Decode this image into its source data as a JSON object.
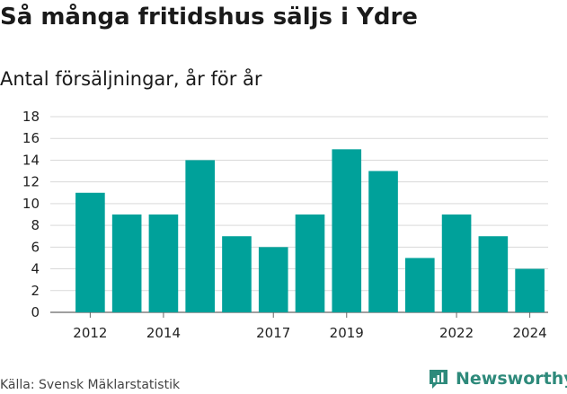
{
  "header": {
    "title": "Så många fritidshus säljs i Ydre",
    "subtitle": "Antal försäljningar, år för år"
  },
  "footer": {
    "source": "Källa: Svensk Mäklarstatistik",
    "logo_text": "Newsworthy",
    "logo_icon": "newsworthy-logo-icon"
  },
  "colors": {
    "bar": "#00a19a",
    "grid": "#d9d9d9",
    "logo": "#2e8a7b"
  },
  "chart_data": {
    "type": "bar",
    "title": "Så många fritidshus säljs i Ydre",
    "subtitle": "Antal försäljningar, år för år",
    "xlabel": "",
    "ylabel": "",
    "categories": [
      "2012",
      "2013",
      "2014",
      "2015",
      "2016",
      "2017",
      "2018",
      "2019",
      "2020",
      "2021",
      "2022",
      "2023",
      "2024"
    ],
    "values": [
      11,
      9,
      9,
      14,
      7,
      6,
      9,
      15,
      13,
      5,
      9,
      7,
      4
    ],
    "x_tick_labels": [
      "2012",
      "2014",
      "2017",
      "2019",
      "2022",
      "2024"
    ],
    "y_ticks": [
      0,
      2,
      4,
      6,
      8,
      10,
      12,
      14,
      16,
      18
    ],
    "ylim": [
      0,
      18
    ],
    "grid": true,
    "legend": "none"
  }
}
